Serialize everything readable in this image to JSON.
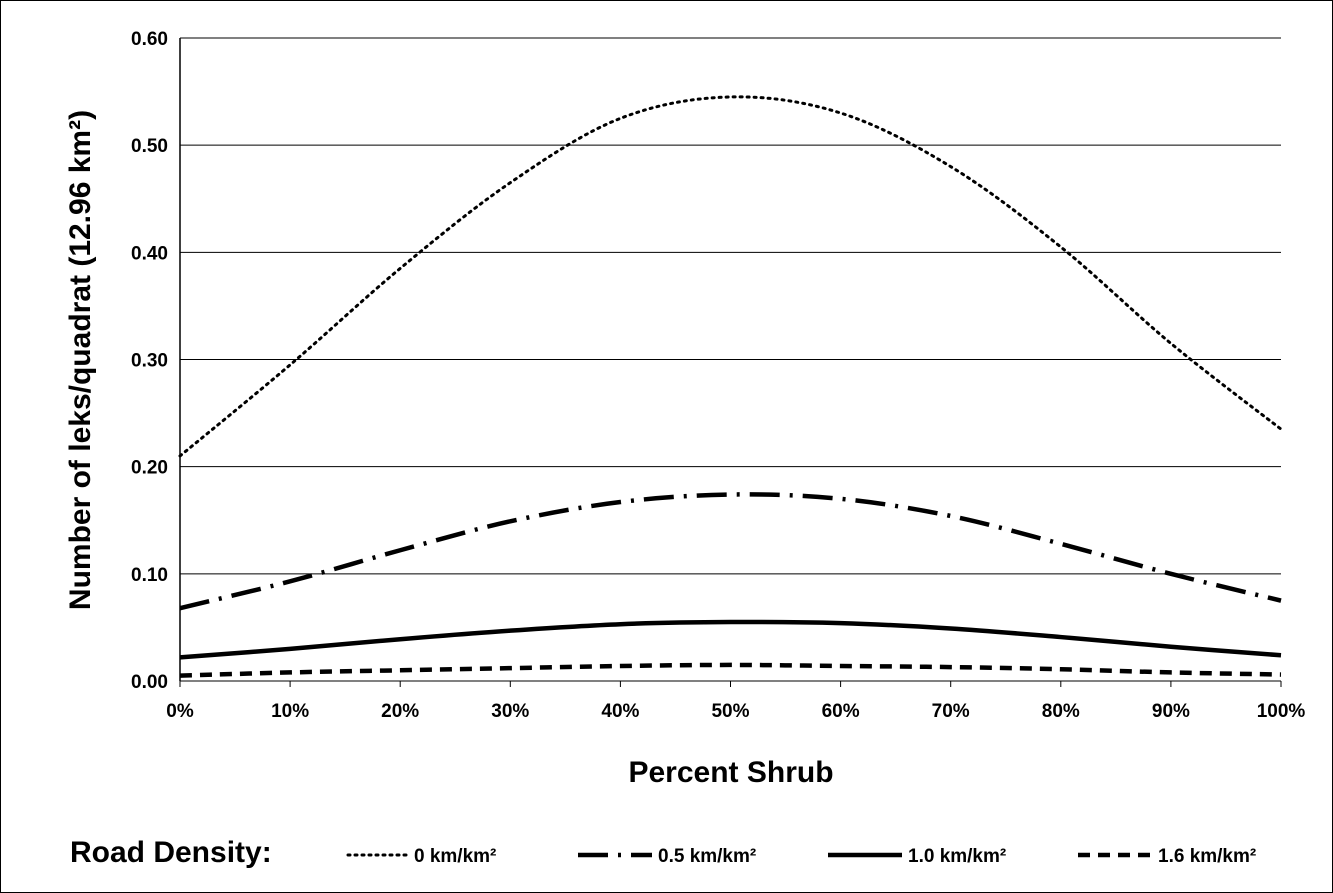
{
  "chart_data": {
    "type": "line",
    "title": "",
    "xlabel": "Percent Shrub",
    "ylabel": "Number of leks/quadrat (12.96 km²)",
    "x": [
      0,
      10,
      20,
      30,
      40,
      50,
      60,
      70,
      80,
      90,
      100
    ],
    "x_tick_labels": [
      "0%",
      "10%",
      "20%",
      "30%",
      "40%",
      "50%",
      "60%",
      "70%",
      "80%",
      "90%",
      "100%"
    ],
    "y_tick_labels": [
      "0.00",
      "0.10",
      "0.20",
      "0.30",
      "0.40",
      "0.50",
      "0.60"
    ],
    "xlim": [
      0,
      100
    ],
    "ylim": [
      0,
      0.6
    ],
    "grid": "horizontal",
    "legend_title": "Road Density:",
    "legend_placement": "bottom",
    "series": [
      {
        "name": "0 km/km²",
        "style": "dotted",
        "values": [
          0.21,
          0.295,
          0.385,
          0.465,
          0.525,
          0.545,
          0.53,
          0.48,
          0.405,
          0.315,
          0.235
        ]
      },
      {
        "name": "0.5 km/km²",
        "style": "dash-dot",
        "values": [
          0.068,
          0.093,
          0.122,
          0.149,
          0.167,
          0.174,
          0.17,
          0.154,
          0.128,
          0.1,
          0.075
        ]
      },
      {
        "name": "1.0 km/km²",
        "style": "solid",
        "values": [
          0.022,
          0.03,
          0.039,
          0.047,
          0.053,
          0.055,
          0.054,
          0.049,
          0.041,
          0.032,
          0.024
        ]
      },
      {
        "name": "1.6 km/km²",
        "style": "dashed",
        "values": [
          0.005,
          0.008,
          0.01,
          0.012,
          0.014,
          0.015,
          0.014,
          0.013,
          0.011,
          0.008,
          0.006
        ]
      }
    ]
  }
}
